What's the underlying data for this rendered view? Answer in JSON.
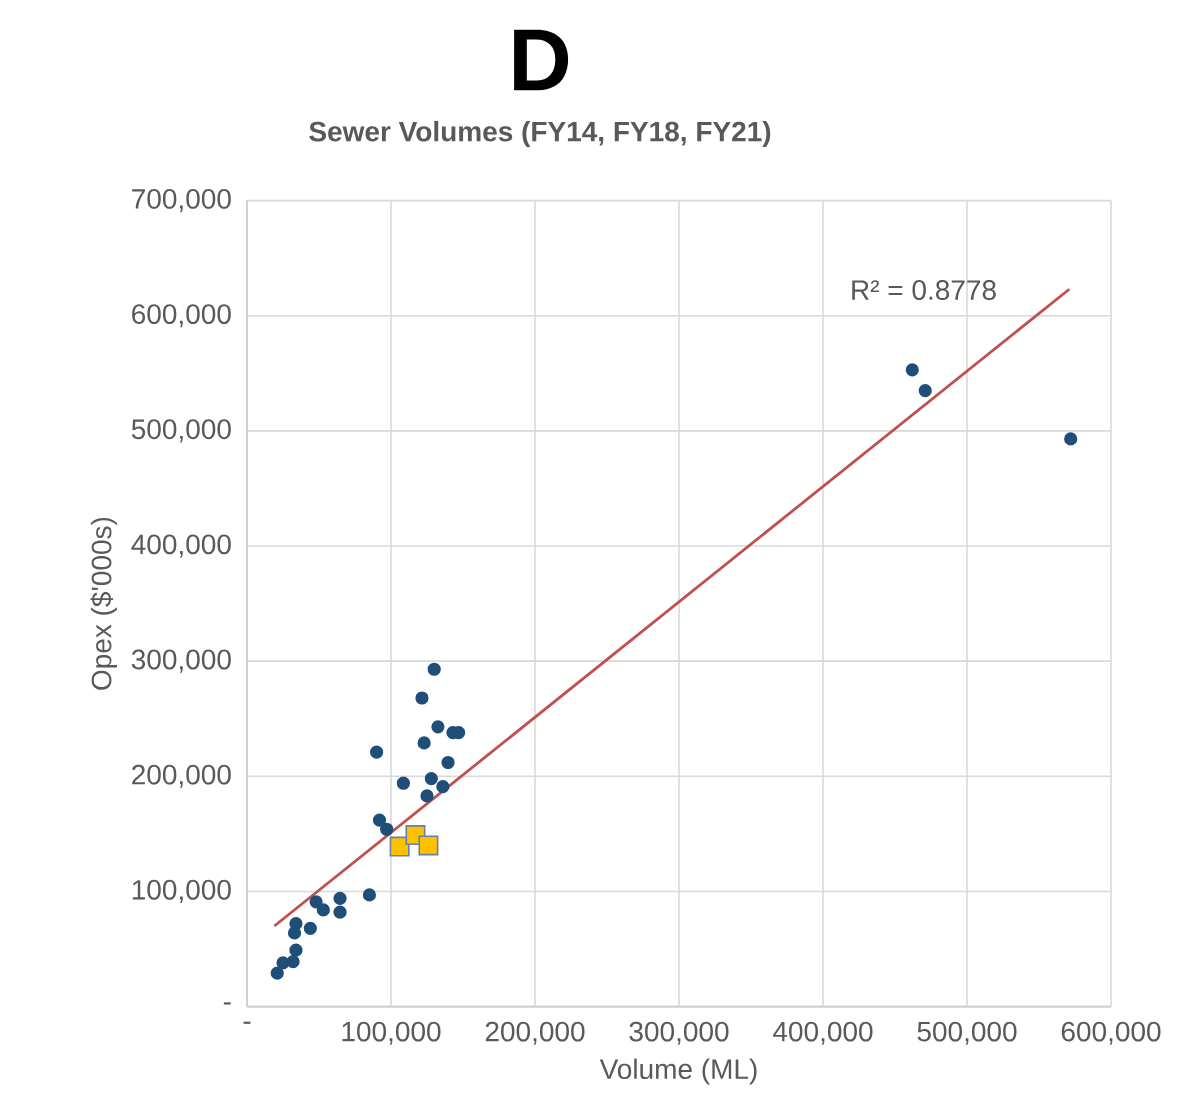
{
  "chart_data": {
    "type": "scatter",
    "title": "D",
    "subtitle": "Sewer Volumes (FY14, FY18, FY21)",
    "xlabel": "Volume (ML)",
    "ylabel": "Opex ($'000s)",
    "xlim": [
      0,
      600000
    ],
    "ylim": [
      0,
      700000
    ],
    "xticks": [
      {
        "value": 0,
        "label": "-"
      },
      {
        "value": 100000,
        "label": "100,000"
      },
      {
        "value": 200000,
        "label": "200,000"
      },
      {
        "value": 300000,
        "label": "300,000"
      },
      {
        "value": 400000,
        "label": "400,000"
      },
      {
        "value": 500000,
        "label": "500,000"
      },
      {
        "value": 600000,
        "label": "600,000"
      }
    ],
    "yticks": [
      {
        "value": 0,
        "label": "-"
      },
      {
        "value": 100000,
        "label": "100,000"
      },
      {
        "value": 200000,
        "label": "200,000"
      },
      {
        "value": 300000,
        "label": "300,000"
      },
      {
        "value": 400000,
        "label": "400,000"
      },
      {
        "value": 500000,
        "label": "500,000"
      },
      {
        "value": 600000,
        "label": "600,000"
      },
      {
        "value": 700000,
        "label": "700,000"
      }
    ],
    "grid": true,
    "annotations": [
      "R² = 0.8778"
    ],
    "series": [
      {
        "marker": "circle",
        "color": "#1f4e79",
        "x": [
          130000,
          121500,
          132600,
          143000,
          147000,
          123000,
          139600,
          90000,
          108600,
          128000,
          136000,
          125000,
          92000,
          97000,
          85000,
          48000,
          53000,
          64600,
          64600,
          34000,
          44000,
          33000,
          34000,
          32000,
          25000,
          21000,
          462000,
          471000,
          572000
        ],
        "values": [
          293000,
          268000,
          243000,
          238000,
          238000,
          229000,
          212000,
          221000,
          194000,
          198000,
          191000,
          183000,
          162000,
          154000,
          97000,
          91000,
          84000,
          94000,
          82000,
          72000,
          68000,
          64000,
          49000,
          39000,
          38000,
          29000,
          553000,
          535000,
          493000
        ]
      },
      {
        "marker": "square",
        "color": "#ffc000",
        "x": [
          106000,
          117000,
          126000
        ],
        "values": [
          139000,
          149000,
          140000
        ]
      },
      {
        "type": "line",
        "marker": "none",
        "color": "#c0504d",
        "line_style": "solid",
        "x": [
          19000,
          571000
        ],
        "values": [
          70000,
          623000
        ]
      }
    ]
  }
}
